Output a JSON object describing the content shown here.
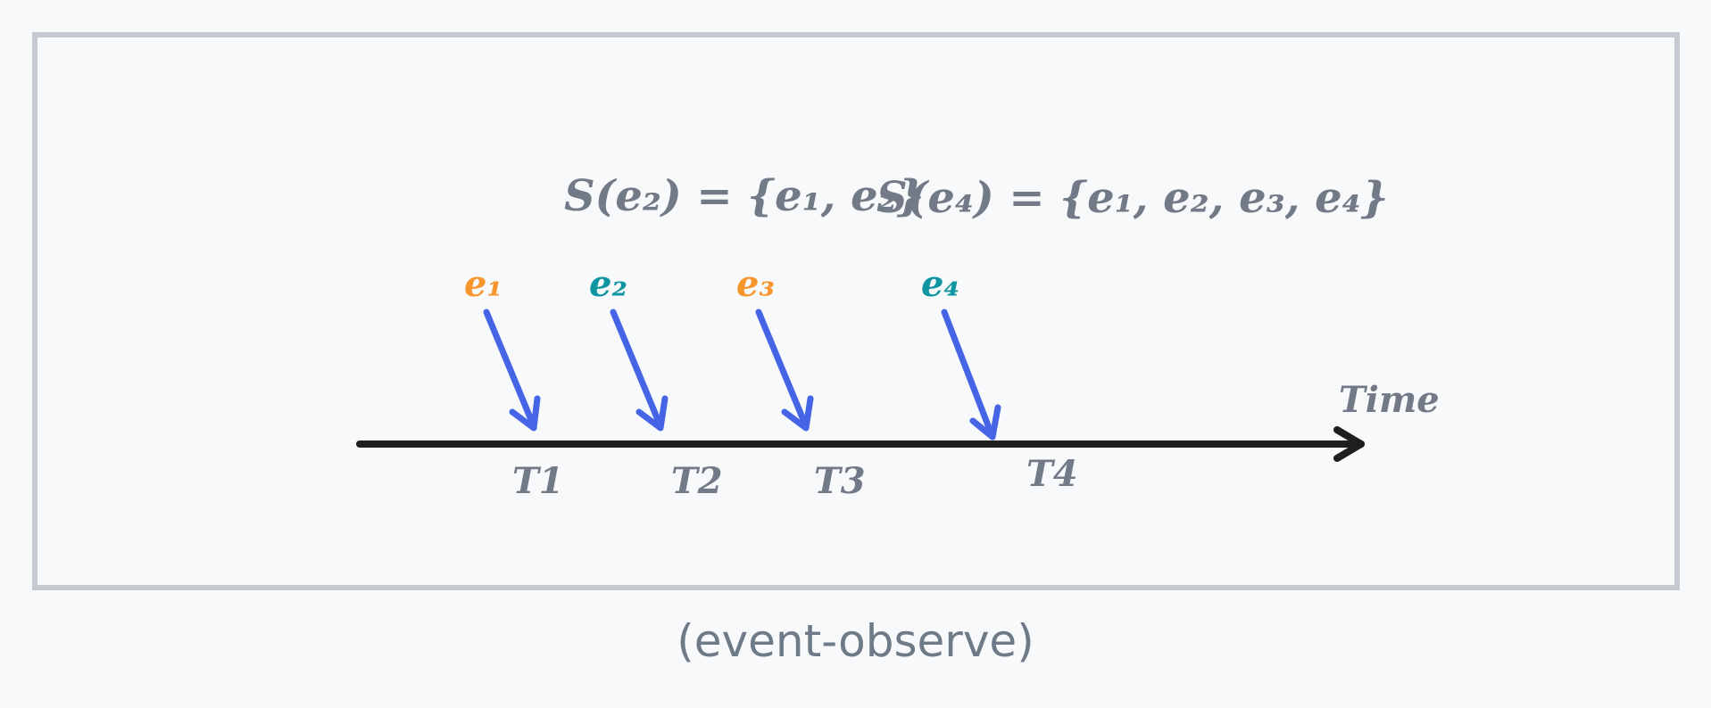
{
  "formulas": [
    {
      "text": "S(e₂) = {e₁, e₂}"
    },
    {
      "text": "S(e₄) = {e₁, e₂, e₃, e₄}"
    }
  ],
  "events": [
    {
      "label": "e₁",
      "color": "#f7962d"
    },
    {
      "label": "e₂",
      "color": "#0f95a0"
    },
    {
      "label": "e₃",
      "color": "#f7962d"
    },
    {
      "label": "e₄",
      "color": "#0f95a0"
    }
  ],
  "ticks": [
    "T1",
    "T2",
    "T3",
    "T4"
  ],
  "axis": {
    "label": "Time"
  },
  "caption": "(event-observe)",
  "colors": {
    "frame": "#c5cad0",
    "arrow": "#4565e6",
    "axis": "#1e1e1e",
    "text": "#717a86"
  }
}
